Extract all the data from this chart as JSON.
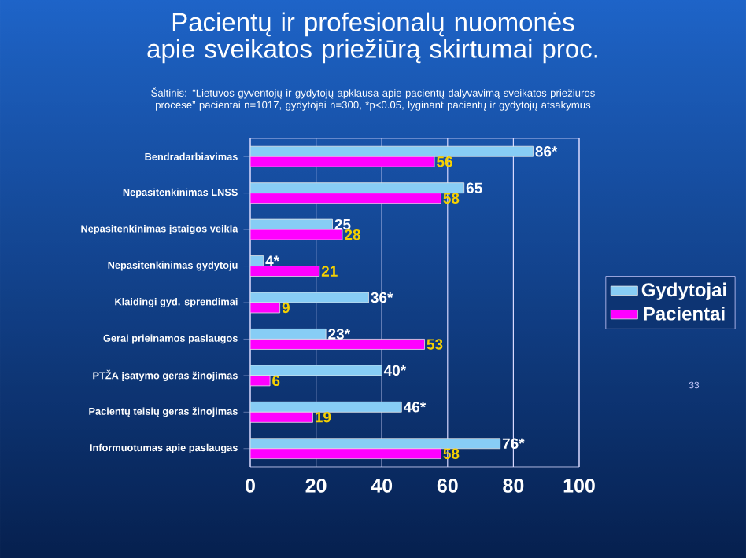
{
  "chart_data": {
    "type": "bar",
    "orientation": "horizontal",
    "title": "Pacientų ir profesionalų nuomonės apie sveikatos priežiūrą skirtumai proc.",
    "annotations": [
      "Šaltinis: “Lietuvos gyventojų ir gydytojų apklausa apie pacientų dalyvavimą sveikatos priežiūros procese” pacientai n=1017, gydytojai n=300, *p<0.05,  lyginant pacientų ir gydytojų atsakymus",
      "33"
    ],
    "categories": [
      "Bendradarbiavimas",
      "Nepasitenkinimas LNSS",
      "Nepasitenkinimas įstaigos veikla",
      "Nepasitenkinimas  gydytoju",
      "Klaidingi gyd. sprendimai",
      "Gerai prieinamos paslaugos",
      "PTŽA įsatymo geras žinojimas",
      "Pacientų teisių geras žinojimas",
      "Informuotumas apie paslaugas"
    ],
    "series": [
      {
        "name": "Gydytojai",
        "color": "#87cdf5",
        "values": [
          86,
          65,
          25,
          4,
          36,
          23,
          40,
          46,
          76
        ],
        "value_labels": [
          "86*",
          "65",
          "25",
          "4*",
          "36*",
          "23*",
          "40*",
          "46*",
          "76*"
        ]
      },
      {
        "name": "Pacientai",
        "color": "#ff00ff",
        "values": [
          56,
          58,
          28,
          21,
          9,
          53,
          6,
          19,
          58
        ],
        "value_labels": [
          "56",
          "58",
          "28",
          "21",
          "9",
          "53",
          "6",
          "19",
          "58"
        ]
      }
    ],
    "xlim": [
      0,
      100
    ],
    "xticks": [
      0,
      20,
      40,
      60,
      80,
      100
    ],
    "grid": "x",
    "legend": "right"
  }
}
